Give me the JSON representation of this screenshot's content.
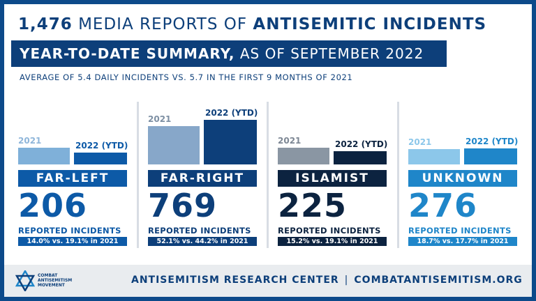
{
  "header": {
    "title_count": "1,476",
    "title_mid": "MEDIA REPORTS OF",
    "title_end": "ANTISEMITIC INCIDENTS",
    "banner_bold": "YEAR-TO-DATE SUMMARY,",
    "banner_rest": "AS OF SEPTEMBER 2022",
    "subtitle": "AVERAGE OF 5.4 DAILY INCIDENTS VS. 5.7 IN THE FIRST 9 MONTHS OF 2021"
  },
  "chart_data": {
    "type": "bar",
    "series": [
      {
        "name": "2021",
        "values": [
          19.1,
          44.2,
          19.1,
          17.7
        ]
      },
      {
        "name": "2022 (YTD)",
        "values": [
          14.0,
          52.1,
          15.2,
          18.7
        ]
      }
    ],
    "categories": [
      "FAR-LEFT",
      "FAR-RIGHT",
      "ISLAMIST",
      "UNKNOWN"
    ],
    "counts": [
      "206",
      "769",
      "225",
      "276"
    ],
    "count_label": "REPORTED INCIDENTS",
    "comparisons": [
      "14.0% vs. 19.1% in 2021",
      "52.1% vs. 44.2% in 2021",
      "15.2% vs. 19.1% in 2021",
      "18.7% vs. 17.7% in 2021"
    ],
    "year_labels": [
      "2021",
      "2022 (YTD)"
    ],
    "colors": [
      {
        "dark": "#0d5aa7",
        "light": "#7fb0d9",
        "lightlabel": "#8fb6da"
      },
      {
        "dark": "#0d3f7a",
        "light": "#87a7c9",
        "lightlabel": "#7d8fa3"
      },
      {
        "dark": "#0c2340",
        "light": "#8a96a3",
        "lightlabel": "#7d8794"
      },
      {
        "dark": "#1f86c9",
        "light": "#8cc7ea",
        "lightlabel": "#8cc7ea"
      }
    ]
  },
  "footer": {
    "logo_line1": "COMBAT",
    "logo_line2": "ANTISEMITISM",
    "logo_line3": "MOVEMENT",
    "center_name": "ANTISEMITISM RESEARCH CENTER",
    "separator": "|",
    "site": "COMBATANTISEMITISM.ORG"
  }
}
